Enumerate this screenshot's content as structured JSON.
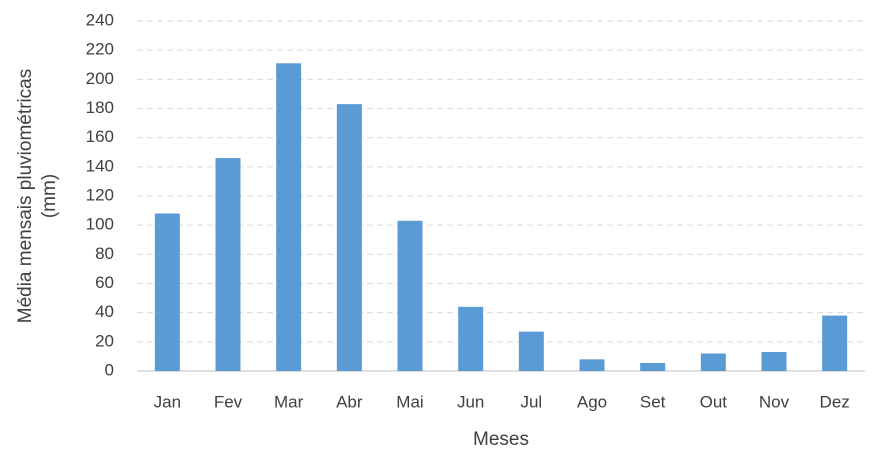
{
  "chart_data": {
    "type": "bar",
    "x_label": "Meses",
    "y_label": [
      "Média mensais pluviométricas",
      "(mm)"
    ],
    "categories": [
      "Jan",
      "Fev",
      "Mar",
      "Abr",
      "Mai",
      "Jun",
      "Jul",
      "Ago",
      "Set",
      "Out",
      "Nov",
      "Dez"
    ],
    "values": [
      108,
      146,
      211,
      183,
      103,
      44,
      27,
      8,
      5.5,
      12,
      13,
      38
    ],
    "color": "#5b9bd5",
    "ylim": [
      0,
      240
    ],
    "yticks": [
      0,
      20,
      40,
      60,
      80,
      100,
      120,
      140,
      160,
      180,
      200,
      220,
      240
    ],
    "grid": true
  }
}
